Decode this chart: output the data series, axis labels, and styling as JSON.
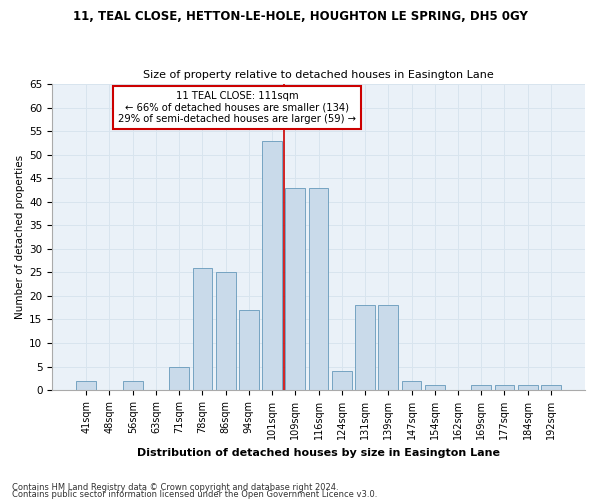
{
  "title": "11, TEAL CLOSE, HETTON-LE-HOLE, HOUGHTON LE SPRING, DH5 0GY",
  "subtitle": "Size of property relative to detached houses in Easington Lane",
  "xlabel": "Distribution of detached houses by size in Easington Lane",
  "ylabel": "Number of detached properties",
  "categories": [
    "41sqm",
    "48sqm",
    "56sqm",
    "63sqm",
    "71sqm",
    "78sqm",
    "86sqm",
    "94sqm",
    "101sqm",
    "109sqm",
    "116sqm",
    "124sqm",
    "131sqm",
    "139sqm",
    "147sqm",
    "154sqm",
    "162sqm",
    "169sqm",
    "177sqm",
    "184sqm",
    "192sqm"
  ],
  "values": [
    2,
    0,
    2,
    0,
    5,
    26,
    25,
    17,
    53,
    43,
    43,
    4,
    18,
    18,
    2,
    1,
    0,
    1,
    1,
    1,
    1
  ],
  "bar_color": "#c9daea",
  "bar_edge_color": "#6699bb",
  "highlight_label": "11 TEAL CLOSE: 111sqm",
  "highlight_line1": "← 66% of detached houses are smaller (134)",
  "highlight_line2": "29% of semi-detached houses are larger (59) →",
  "annotation_box_color": "#ffffff",
  "annotation_box_edge": "#cc0000",
  "vline_color": "#cc0000",
  "ylim": [
    0,
    65
  ],
  "yticks": [
    0,
    5,
    10,
    15,
    20,
    25,
    30,
    35,
    40,
    45,
    50,
    55,
    60,
    65
  ],
  "grid_color": "#d8e4ee",
  "footer1": "Contains HM Land Registry data © Crown copyright and database right 2024.",
  "footer2": "Contains public sector information licensed under the Open Government Licence v3.0.",
  "bg_color": "#ffffff",
  "plot_bg_color": "#eaf1f8"
}
